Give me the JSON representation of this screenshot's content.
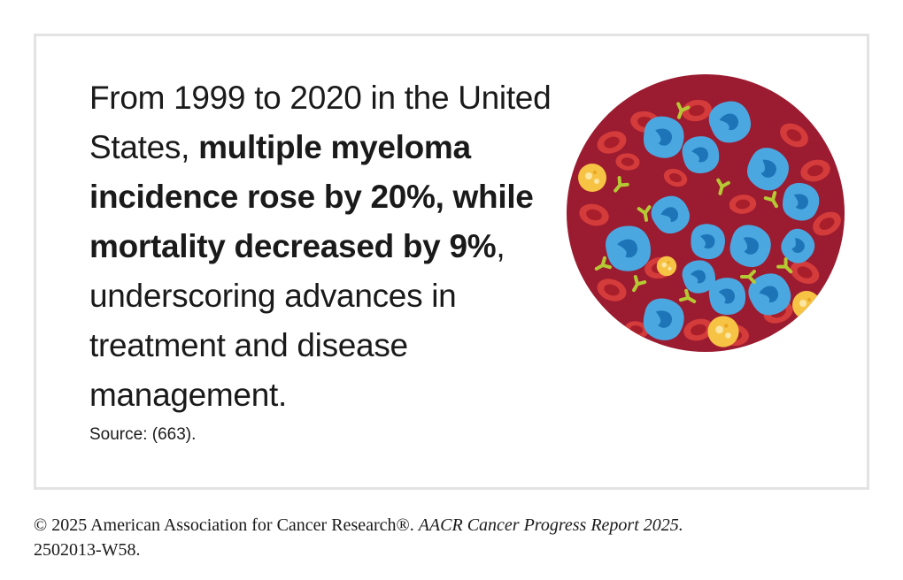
{
  "headline": {
    "part1": "From 1999 to 2020 in the United States, ",
    "bold": "multiple myeloma incidence rose by 20%, while mortality decreased by 9%",
    "part2": ", underscoring advances in treatment and disease management."
  },
  "source": "Source: (663).",
  "footer": {
    "copyright": "© 2025 American Association for Cancer Research®. ",
    "report": "AACR Cancer Progress Report 2025.",
    "code": "2502013-W58."
  },
  "illustration": {
    "icon": "blood-cells-icon",
    "colors": {
      "background": "#9b1b30",
      "red_cell": "#d43b3b",
      "red_cell_center": "#a81e2a",
      "myeloma_cell": "#4ba7e0",
      "myeloma_nucleus": "#1d75b8",
      "yellow_cell": "#f6c344",
      "antibody": "#b5c934"
    }
  }
}
